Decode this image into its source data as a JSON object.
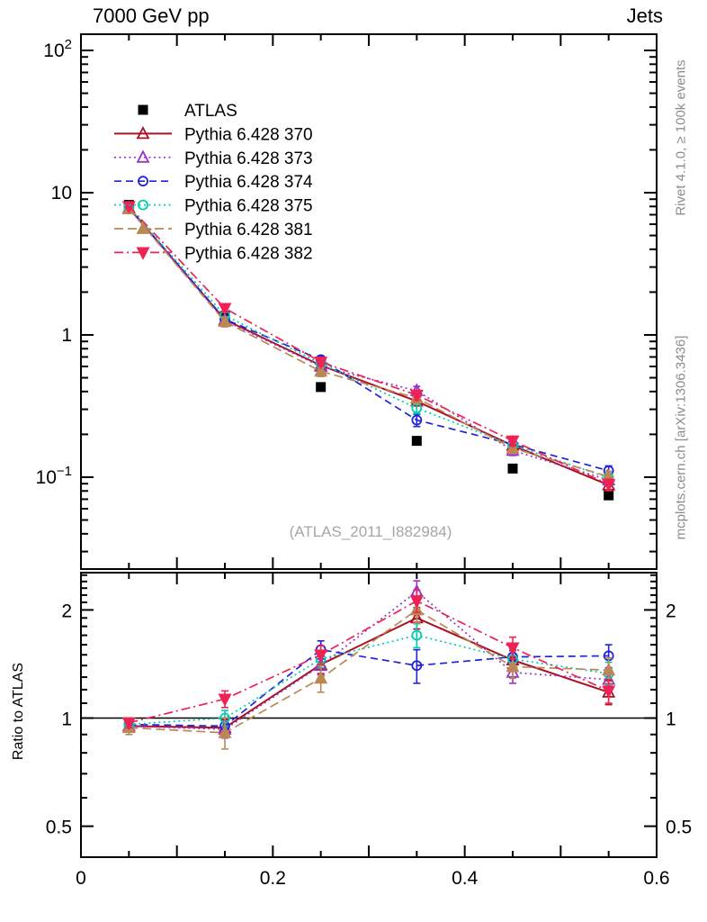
{
  "header": {
    "title_left": "7000 GeV pp",
    "title_right": "Jets"
  },
  "side_labels": {
    "right_top": "Rivet 4.1.0, ≥ 100k events",
    "right_bottom": "mcplots.cern.ch [arXiv:1306.3436]"
  },
  "watermark": "(ATLAS_2011_I882984)",
  "ratio_panel_label": "Ratio to ATLAS",
  "chart_data": {
    "type": "line",
    "title": "7000 GeV pp Jets",
    "legend_position": "top-left-inside",
    "grid": false,
    "x": [
      0.05,
      0.15,
      0.25,
      0.35,
      0.45,
      0.55
    ],
    "x_range": [
      0,
      0.6
    ],
    "x_ticks": [
      {
        "v": 0,
        "text": "0"
      },
      {
        "v": 0.2,
        "text": "0.2"
      },
      {
        "v": 0.4,
        "text": "0.4"
      },
      {
        "v": 0.6,
        "text": "0.6"
      }
    ],
    "main_axis": {
      "scale": "log",
      "min": 0.0226,
      "max": 130,
      "labels": [
        {
          "v": 100,
          "text": "10",
          "exp": "2"
        },
        {
          "v": 10,
          "text": "10"
        },
        {
          "v": 1,
          "text": "1"
        },
        {
          "v": 0.1,
          "text": "10",
          "exp": "−1"
        }
      ]
    },
    "ratio_axis": {
      "scale": "log",
      "min": 0.41,
      "max": 2.54,
      "reference_line": 1,
      "labels": [
        {
          "v": 2,
          "text": "2"
        },
        {
          "v": 1,
          "text": "1"
        },
        {
          "v": 0.5,
          "text": "0.5"
        }
      ]
    },
    "series": [
      {
        "id": "ATLAS",
        "name": "ATLAS",
        "color": "#000000",
        "marker": "square",
        "filled": true,
        "line": "none",
        "values": [
          8.2,
          1.36,
          0.43,
          0.18,
          0.115,
          0.0745
        ],
        "err": [
          0.4,
          0.07,
          0.022,
          0.01,
          0.006,
          0.004
        ]
      },
      {
        "id": "370",
        "name": "Pythia 6.428 370",
        "color": "#aa1122",
        "marker": "triangle-up",
        "filled": false,
        "line": "solid",
        "width": 2,
        "values": [
          7.8,
          1.28,
          0.61,
          0.342,
          0.167,
          0.088
        ],
        "err": [
          0.3,
          0.07,
          0.035,
          0.025,
          0.012,
          0.008
        ],
        "ratio": [
          0.95,
          0.94,
          1.41,
          1.9,
          1.45,
          1.18
        ],
        "ratio_err": [
          0.03,
          0.05,
          0.08,
          0.13,
          0.09,
          0.09
        ]
      },
      {
        "id": "373",
        "name": "Pythia 6.428 373",
        "color": "#9933cc",
        "marker": "triangle-up",
        "filled": false,
        "line": "dotted",
        "dash": "2 3.5",
        "values": [
          7.8,
          1.26,
          0.6,
          0.405,
          0.154,
          0.0955
        ],
        "err": [
          0.3,
          0.07,
          0.035,
          0.03,
          0.012,
          0.008
        ],
        "ratio": [
          0.95,
          0.93,
          1.4,
          2.25,
          1.34,
          1.28
        ],
        "ratio_err": [
          0.03,
          0.05,
          0.08,
          0.16,
          0.09,
          0.1
        ]
      },
      {
        "id": "374",
        "name": "Pythia 6.428 374",
        "color": "#2222dd",
        "marker": "circle",
        "filled": false,
        "line": "dashed",
        "dash": "8 5",
        "values": [
          7.9,
          1.29,
          0.67,
          0.252,
          0.17,
          0.111
        ],
        "err": [
          0.3,
          0.07,
          0.04,
          0.025,
          0.013,
          0.009
        ],
        "ratio": [
          0.96,
          0.95,
          1.55,
          1.4,
          1.48,
          1.49
        ],
        "ratio_err": [
          0.03,
          0.05,
          0.09,
          0.15,
          0.1,
          0.11
        ]
      },
      {
        "id": "375",
        "name": "Pythia 6.428 375",
        "color": "#00ccb0",
        "marker": "circle",
        "filled": false,
        "line": "dotted",
        "dash": "2 3.5",
        "values": [
          7.9,
          1.37,
          0.63,
          0.306,
          0.168,
          0.099
        ],
        "err": [
          0.3,
          0.07,
          0.035,
          0.025,
          0.012,
          0.008
        ],
        "ratio": [
          0.96,
          1.0,
          1.46,
          1.7,
          1.46,
          1.33
        ],
        "ratio_err": [
          0.03,
          0.05,
          0.08,
          0.13,
          0.09,
          0.1
        ]
      },
      {
        "id": "381",
        "name": "Pythia 6.428 381",
        "color": "#bb8855",
        "marker": "triangle-up",
        "filled": true,
        "line": "dashed",
        "dash": "10 5",
        "values": [
          7.7,
          1.24,
          0.555,
          0.36,
          0.16,
          0.101
        ],
        "err": [
          0.3,
          0.1,
          0.045,
          0.03,
          0.013,
          0.009
        ],
        "ratio": [
          0.94,
          0.91,
          1.29,
          2.0,
          1.39,
          1.36
        ],
        "ratio_err": [
          0.04,
          0.09,
          0.11,
          0.16,
          0.1,
          0.11
        ]
      },
      {
        "id": "382",
        "name": "Pythia 6.428 382",
        "color": "#ee2255",
        "marker": "triangle-down",
        "filled": true,
        "line": "dashdot",
        "dash": "10 4 2 4",
        "values": [
          8.0,
          1.54,
          0.645,
          0.378,
          0.18,
          0.089
        ],
        "err": [
          0.3,
          0.08,
          0.04,
          0.03,
          0.014,
          0.008
        ],
        "ratio": [
          0.97,
          1.13,
          1.5,
          2.12,
          1.57,
          1.19
        ],
        "ratio_err": [
          0.03,
          0.06,
          0.09,
          0.15,
          0.11,
          0.09
        ]
      }
    ]
  }
}
